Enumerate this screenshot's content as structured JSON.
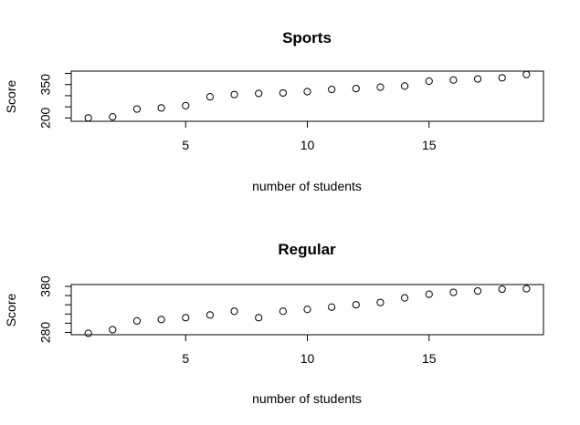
{
  "chart_data": [
    {
      "type": "scatter",
      "title": "Sports",
      "xlabel": "number of students",
      "ylabel": "Score",
      "x_ticks": [
        "5",
        "10",
        "15"
      ],
      "y_ticks": [
        "200",
        "350"
      ],
      "xlim": [
        0.3,
        19.7
      ],
      "ylim": [
        185,
        410
      ],
      "grid": false,
      "series": [
        {
          "x": [
            1,
            2,
            3,
            4,
            5,
            6,
            7,
            8,
            9,
            10,
            11,
            12,
            13,
            14,
            15,
            16,
            17,
            18,
            19
          ],
          "y": [
            200,
            205,
            240,
            245,
            255,
            295,
            305,
            310,
            312,
            318,
            328,
            332,
            338,
            343,
            365,
            370,
            375,
            380,
            395
          ]
        }
      ]
    },
    {
      "type": "scatter",
      "title": "Regular",
      "xlabel": "number of students",
      "ylabel": "Score",
      "x_ticks": [
        "5",
        "10",
        "15"
      ],
      "y_ticks": [
        "280",
        "380"
      ],
      "xlim": [
        0.3,
        19.7
      ],
      "ylim": [
        275,
        384
      ],
      "grid": false,
      "series": [
        {
          "x": [
            1,
            2,
            3,
            4,
            5,
            6,
            7,
            8,
            9,
            10,
            11,
            12,
            13,
            14,
            15,
            16,
            17,
            18,
            19
          ],
          "y": [
            278,
            286,
            305,
            308,
            312,
            318,
            326,
            312,
            326,
            330,
            335,
            340,
            345,
            355,
            363,
            367,
            370,
            374,
            375
          ]
        }
      ]
    }
  ]
}
